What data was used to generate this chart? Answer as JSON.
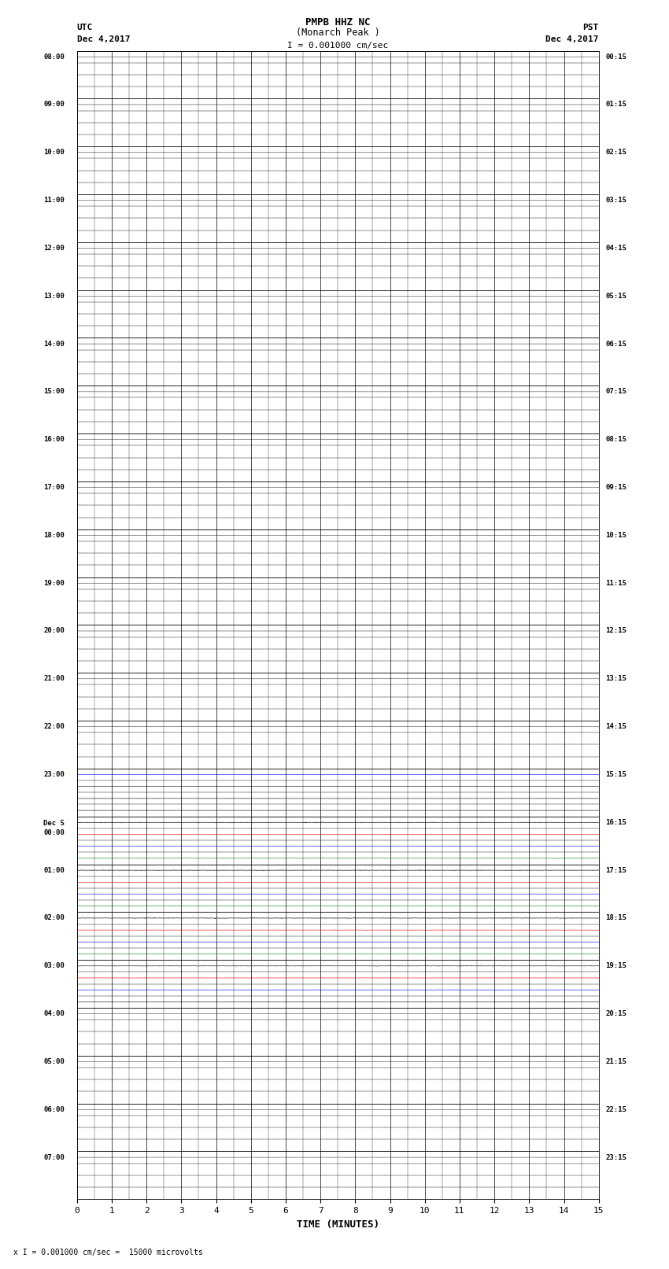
{
  "title_line1": "PMPB HHZ NC",
  "title_line2": "(Monarch Peak )",
  "title_scale": "I = 0.001000 cm/sec",
  "left_header_line1": "UTC",
  "left_header_line2": "Dec 4,2017",
  "right_header_line1": "PST",
  "right_header_line2": "Dec 4,2017",
  "xlabel": "TIME (MINUTES)",
  "footer": "x I = 0.001000 cm/sec =  15000 microvolts",
  "utc_labels": [
    "08:00",
    "09:00",
    "10:00",
    "11:00",
    "12:00",
    "13:00",
    "14:00",
    "15:00",
    "16:00",
    "17:00",
    "18:00",
    "19:00",
    "20:00",
    "21:00",
    "22:00",
    "23:00",
    "Dec 5\n00:00",
    "01:00",
    "02:00",
    "03:00",
    "04:00",
    "05:00",
    "06:00",
    "07:00"
  ],
  "pst_labels": [
    "00:15",
    "01:15",
    "02:15",
    "03:15",
    "04:15",
    "05:15",
    "06:15",
    "07:15",
    "08:15",
    "09:15",
    "10:15",
    "11:15",
    "12:15",
    "13:15",
    "14:15",
    "15:15",
    "16:15",
    "17:15",
    "18:15",
    "19:15",
    "20:15",
    "21:15",
    "22:15",
    "23:15"
  ],
  "num_rows": 24,
  "num_minutes": 15,
  "sublines_per_row": 4,
  "background_color": "#ffffff"
}
